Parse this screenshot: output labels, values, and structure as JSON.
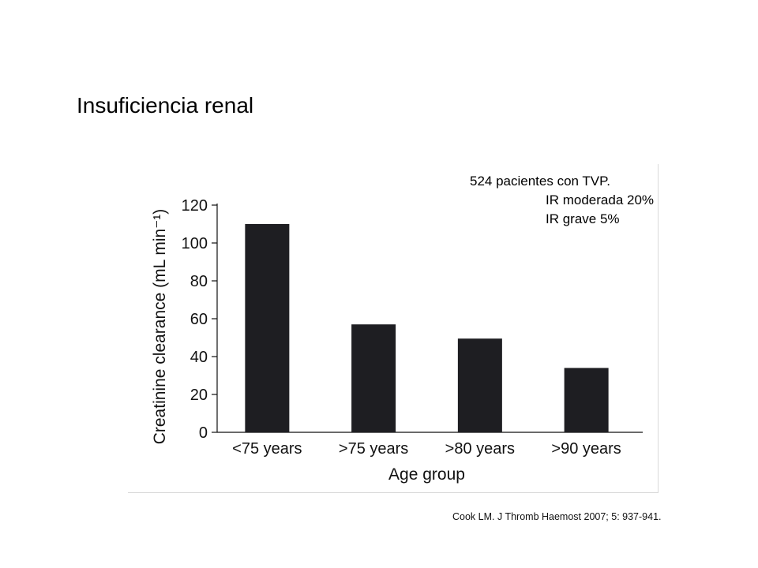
{
  "slide": {
    "title": "Insuficiencia renal",
    "info": {
      "line1": "524 pacientes con TVP.",
      "line2": "IR moderada 20%",
      "line3": "IR grave 5%"
    },
    "citation": "Cook LM. J Thromb Haemost 2007; 5: 937-941."
  },
  "chart_data": {
    "type": "bar",
    "title": "",
    "categories": [
      "<75 years",
      ">75 years",
      ">80 years",
      ">90 years"
    ],
    "values": [
      110,
      57,
      49.5,
      34
    ],
    "xlabel": "Age group",
    "ylabel": "Creatinine clearance (mL min⁻¹)",
    "ylim": [
      0,
      120
    ],
    "yticks": [
      0,
      20,
      40,
      60,
      80,
      100,
      120
    ],
    "grid": false,
    "bar_color": "#1e1e22"
  }
}
